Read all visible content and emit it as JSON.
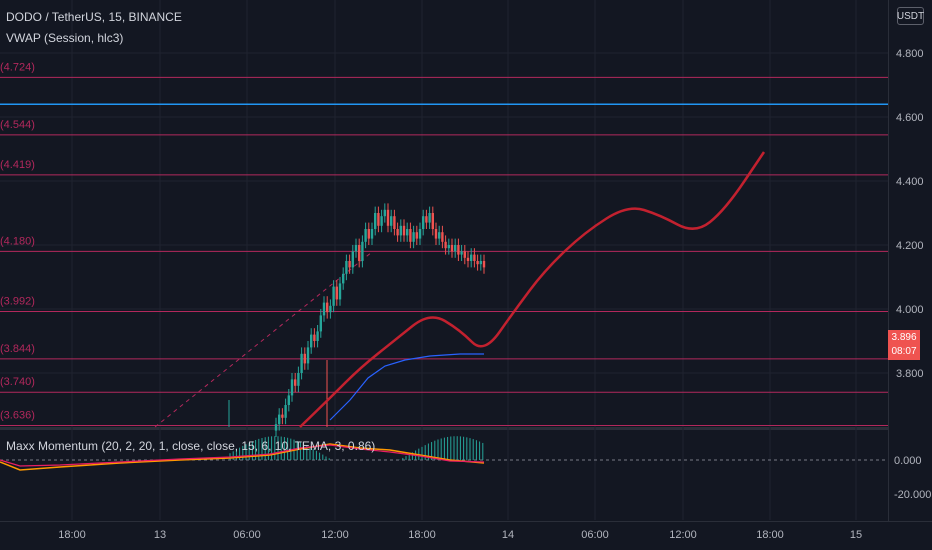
{
  "header": {
    "symbol_line": "DODO / TetherUS, 15, BINANCE",
    "indicator_line": "VWAP (Session, hlc3)"
  },
  "oscillator": {
    "title": "Maxx Momentum (20, 2, 20, 1, close, close, 15, 6, 10, TEMA, 3, 0.86)",
    "ticks": [
      "0.000",
      "-20.000"
    ]
  },
  "price_axis": {
    "currency_badge": "USDT",
    "ticks": [
      "4.800",
      "4.600",
      "4.400",
      "4.200",
      "4.000",
      "3.800"
    ],
    "current_price": "3.896",
    "countdown": "08:07"
  },
  "colors": {
    "background": "#131722",
    "level_line": "#b2285c",
    "blue_line": "#2196f3",
    "up_candle": "#26a69a",
    "down_candle": "#ef5350",
    "projection": "#c2212f",
    "vwap": "#2962ff"
  },
  "chart_data": {
    "type": "line",
    "symbol": "DODO / TetherUS",
    "interval": "15",
    "exchange": "BINANCE",
    "y_range": [
      3.6,
      4.95
    ],
    "x_ticks": [
      "18:00",
      "13",
      "06:00",
      "12:00",
      "18:00",
      "14",
      "06:00",
      "12:00",
      "18:00",
      "15"
    ],
    "levels": [
      {
        "label": "(4.724)",
        "value": 4.724
      },
      {
        "label": "(4.544)",
        "value": 4.544
      },
      {
        "label": "(4.419)",
        "value": 4.419
      },
      {
        "label": "(4.180)",
        "value": 4.18
      },
      {
        "label": "(3.992)",
        "value": 3.992
      },
      {
        "label": "(3.844)",
        "value": 3.844
      },
      {
        "label": "(3.740)",
        "value": 3.74
      },
      {
        "label": "(3.636)",
        "value": 3.636
      }
    ],
    "horizontal_line": 4.64,
    "projection_path": [
      {
        "x": "13 20:00",
        "y": 3.5
      },
      {
        "x": "13 22:00",
        "y": 3.97
      },
      {
        "x": "14 00:00",
        "y": 3.85
      },
      {
        "x": "14 03:00",
        "y": 4.07
      },
      {
        "x": "14 06:00",
        "y": 4.26
      },
      {
        "x": "14 08:30",
        "y": 4.33
      },
      {
        "x": "14 12:00",
        "y": 4.23
      },
      {
        "x": "14 17:00",
        "y": 4.49
      }
    ]
  }
}
